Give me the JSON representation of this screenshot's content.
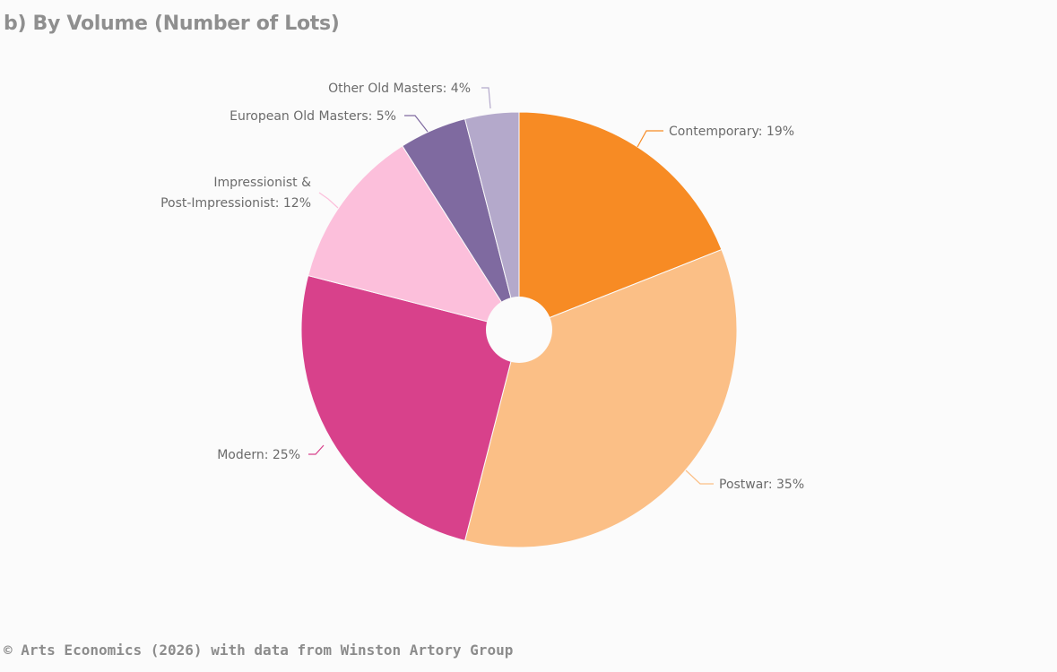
{
  "chart_data": {
    "type": "pie",
    "title": "b) By Volume (Number of Lots)",
    "unit": "%",
    "slices": [
      {
        "label": "Contemporary: 19%",
        "value": 19,
        "color": "#f78b24"
      },
      {
        "label": "Postwar: 35%",
        "value": 35,
        "color": "#fbbf86"
      },
      {
        "label": "Modern: 25%",
        "value": 25,
        "color": "#d8418b"
      },
      {
        "label": "Impressionist & Post-Impressionist: 12%",
        "label_lines": [
          "Impressionist &",
          "Post-Impressionist: 12%"
        ],
        "value": 12,
        "color": "#fcbfdb"
      },
      {
        "label": "European Old Masters: 5%",
        "value": 5,
        "color": "#7f6aa0"
      },
      {
        "label": "Other Old Masters: 4%",
        "value": 4,
        "color": "#b4a9cb"
      }
    ],
    "source": "© Arts Economics (2026) with data from Winston Artory Group"
  }
}
